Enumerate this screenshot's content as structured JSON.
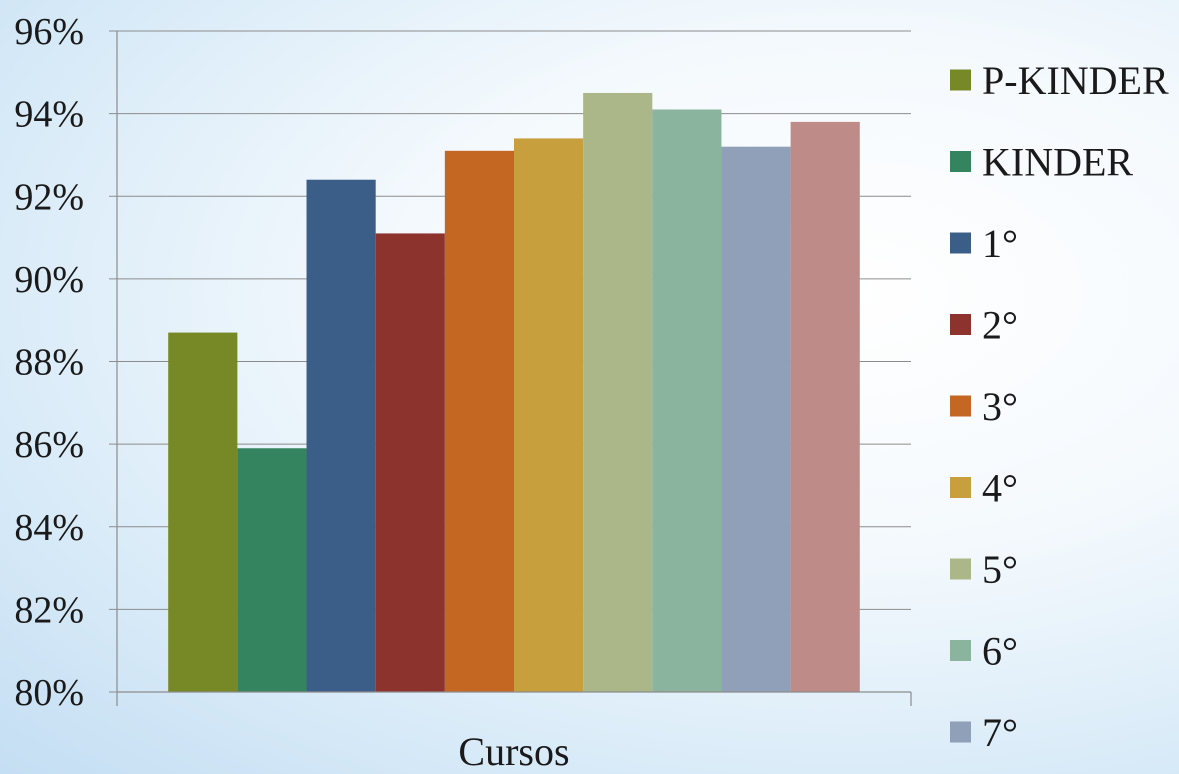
{
  "chart_data": {
    "type": "bar",
    "xlabel": "Cursos",
    "ylabel": "",
    "ylim": [
      80,
      96
    ],
    "ytick_step": 2,
    "ytick_suffix": "%",
    "grid": true,
    "legend_position": "right",
    "categories": [
      "Cursos"
    ],
    "series": [
      {
        "name": "P-KINDER",
        "values": [
          88.7
        ],
        "color": "#778826"
      },
      {
        "name": "KINDER",
        "values": [
          85.9
        ],
        "color": "#34845F"
      },
      {
        "name": "1°",
        "values": [
          92.4
        ],
        "color": "#3B5E88"
      },
      {
        "name": "2°",
        "values": [
          91.1
        ],
        "color": "#8C332D"
      },
      {
        "name": "3°",
        "values": [
          93.1
        ],
        "color": "#C46722"
      },
      {
        "name": "4°",
        "values": [
          93.4
        ],
        "color": "#C79F3C"
      },
      {
        "name": "5°",
        "values": [
          94.5
        ],
        "color": "#ABB789"
      },
      {
        "name": "6°",
        "values": [
          94.1
        ],
        "color": "#8BB49E"
      },
      {
        "name": "7°",
        "values": [
          93.2
        ],
        "color": "#8FA0B8"
      },
      {
        "name": "",
        "values": [
          93.8
        ],
        "color": "#BE8B88"
      }
    ]
  }
}
